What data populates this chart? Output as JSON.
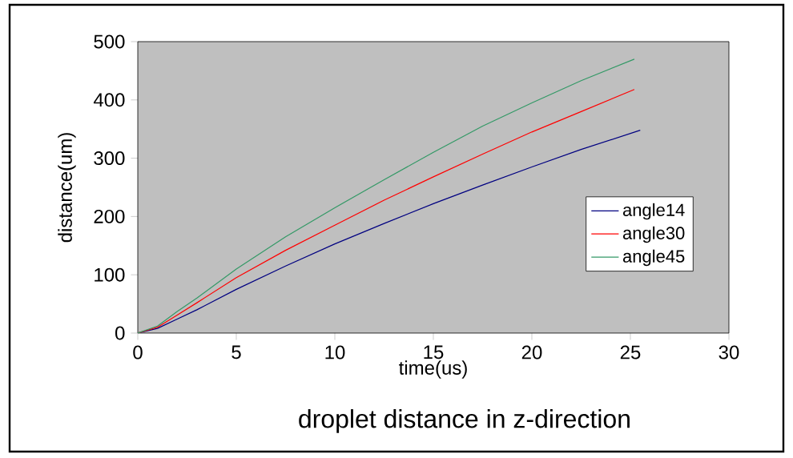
{
  "chart_data": {
    "type": "line",
    "title": "droplet distance in z-direction",
    "xlabel": "time(us)",
    "ylabel": "distance(um)",
    "xlim": [
      0,
      30
    ],
    "ylim": [
      0,
      500
    ],
    "xticks": [
      0,
      5,
      10,
      15,
      20,
      25,
      30
    ],
    "yticks": [
      0,
      100,
      200,
      300,
      400,
      500
    ],
    "grid": false,
    "legend": "right",
    "marker": "none",
    "line_style": "solid",
    "series": [
      {
        "name": "angle14",
        "color": "#000080",
        "x": [
          0,
          1,
          2,
          3,
          5,
          7.5,
          10,
          12.5,
          15,
          17.5,
          20,
          22.5,
          25.5
        ],
        "values": [
          0,
          8,
          24,
          40,
          75,
          115,
          153,
          188,
          222,
          254,
          285,
          315,
          348
        ]
      },
      {
        "name": "angle30",
        "color": "#ff0000",
        "x": [
          0,
          1,
          2,
          3,
          5,
          7.5,
          10,
          12.5,
          15,
          17.5,
          20,
          22.5,
          25.2
        ],
        "values": [
          0,
          10,
          31,
          52,
          95,
          142,
          185,
          228,
          268,
          307,
          345,
          380,
          418
        ]
      },
      {
        "name": "angle45",
        "color": "#339966",
        "x": [
          0,
          1,
          2,
          3,
          5,
          7.5,
          10,
          12.5,
          15,
          17.5,
          20,
          22.5,
          25.2
        ],
        "values": [
          0,
          12,
          37,
          60,
          110,
          165,
          215,
          263,
          310,
          355,
          395,
          433,
          470
        ]
      }
    ]
  }
}
